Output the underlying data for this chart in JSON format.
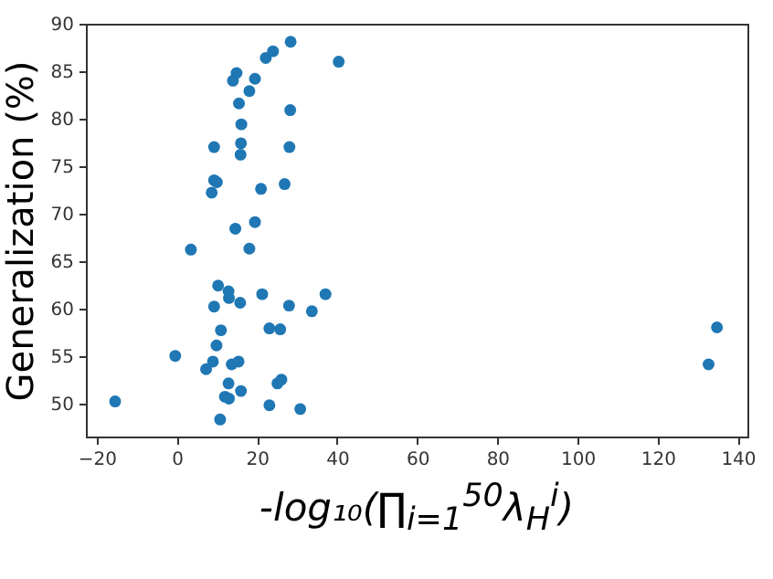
{
  "chart_data": {
    "type": "scatter",
    "xlabel": "-log₁₀(∏$_{i=1}$$^{50}$λ$_{H}$$^{i}$)",
    "ylabel": "Generalization (%)",
    "xlim": [
      -22.7,
      142.4
    ],
    "ylim": [
      46.5,
      90
    ],
    "xticks": [
      -20,
      0,
      20,
      40,
      60,
      80,
      100,
      120,
      140
    ],
    "yticks": [
      50,
      55,
      60,
      65,
      70,
      75,
      80,
      85,
      90
    ],
    "grid": false,
    "marker": "circle",
    "series": [
      {
        "color": "#1f77b4",
        "x": [
          28.4,
          40.4,
          24.0,
          22.2,
          14.9,
          14.0,
          19.5,
          18.1,
          15.5,
          28.3,
          16.1,
          9.3,
          16.0,
          15.9,
          28.1,
          9.3,
          10.0,
          8.7,
          21.0,
          26.9,
          19.5,
          14.6,
          18.1,
          3.5,
          10.3,
          12.9,
          13.0,
          15.8,
          21.3,
          37.1,
          28.0,
          9.3,
          33.7,
          11.0,
          23.1,
          25.8,
          9.9,
          -0.4,
          9.0,
          7.3,
          13.7,
          15.4,
          12.9,
          25.1,
          26.1,
          16.0,
          12.0,
          13.0,
          23.1,
          30.8,
          -15.4,
          10.8,
          134.8,
          132.7
        ],
        "values": [
          88.1,
          86.0,
          87.1,
          86.4,
          84.8,
          84.0,
          84.2,
          82.9,
          81.6,
          80.9,
          79.4,
          77.0,
          77.4,
          76.2,
          77.0,
          73.5,
          73.3,
          72.2,
          72.6,
          73.1,
          69.1,
          68.4,
          66.3,
          66.2,
          62.4,
          61.8,
          61.1,
          60.6,
          61.5,
          61.5,
          60.3,
          60.2,
          59.7,
          57.7,
          57.9,
          57.8,
          56.1,
          55.0,
          54.4,
          53.6,
          54.1,
          54.4,
          52.1,
          52.1,
          52.5,
          51.3,
          50.7,
          50.5,
          49.8,
          49.4,
          50.2,
          48.3,
          58.0,
          54.1
        ]
      }
    ]
  }
}
